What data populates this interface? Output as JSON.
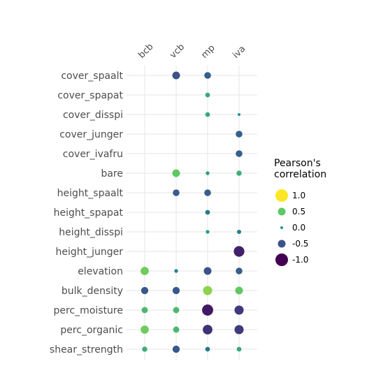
{
  "chart_data": {
    "type": "scatter",
    "subtype": "correlation-dot-matrix",
    "x_categories": [
      "bcb",
      "vcb",
      "mp",
      "iva"
    ],
    "y_categories": [
      "cover_spaalt",
      "cover_spapat",
      "cover_disspi",
      "cover_junger",
      "cover_ivafru",
      "bare",
      "height_spaalt",
      "height_spapat",
      "height_disspi",
      "height_junger",
      "elevation",
      "bulk_density",
      "perc_moisture",
      "perc_organic",
      "shear_strength"
    ],
    "points": [
      {
        "x": "vcb",
        "y": "cover_spaalt",
        "r": -0.5
      },
      {
        "x": "mp",
        "y": "cover_spaalt",
        "r": -0.4
      },
      {
        "x": "mp",
        "y": "cover_spapat",
        "r": 0.2
      },
      {
        "x": "mp",
        "y": "cover_disspi",
        "r": 0.2
      },
      {
        "x": "iva",
        "y": "cover_disspi",
        "r": 0.0
      },
      {
        "x": "iva",
        "y": "cover_junger",
        "r": -0.4
      },
      {
        "x": "iva",
        "y": "cover_ivafru",
        "r": -0.4
      },
      {
        "x": "vcb",
        "y": "bare",
        "r": 0.5
      },
      {
        "x": "mp",
        "y": "bare",
        "r": 0.1
      },
      {
        "x": "iva",
        "y": "bare",
        "r": 0.25
      },
      {
        "x": "vcb",
        "y": "height_spaalt",
        "r": -0.4
      },
      {
        "x": "mp",
        "y": "height_spaalt",
        "r": -0.4
      },
      {
        "x": "mp",
        "y": "height_spapat",
        "r": -0.2
      },
      {
        "x": "mp",
        "y": "height_disspi",
        "r": 0.1
      },
      {
        "x": "iva",
        "y": "height_disspi",
        "r": -0.15
      },
      {
        "x": "iva",
        "y": "height_junger",
        "r": -0.8
      },
      {
        "x": "bcb",
        "y": "elevation",
        "r": 0.55
      },
      {
        "x": "vcb",
        "y": "elevation",
        "r": -0.1
      },
      {
        "x": "mp",
        "y": "elevation",
        "r": -0.5
      },
      {
        "x": "iva",
        "y": "elevation",
        "r": -0.4
      },
      {
        "x": "bcb",
        "y": "bulk_density",
        "r": -0.45
      },
      {
        "x": "vcb",
        "y": "bulk_density",
        "r": -0.45
      },
      {
        "x": "mp",
        "y": "bulk_density",
        "r": 0.65
      },
      {
        "x": "iva",
        "y": "bulk_density",
        "r": 0.5
      },
      {
        "x": "bcb",
        "y": "perc_moisture",
        "r": 0.35
      },
      {
        "x": "vcb",
        "y": "perc_moisture",
        "r": 0.35
      },
      {
        "x": "mp",
        "y": "perc_moisture",
        "r": -0.85
      },
      {
        "x": "iva",
        "y": "perc_moisture",
        "r": -0.65
      },
      {
        "x": "bcb",
        "y": "perc_organic",
        "r": 0.55
      },
      {
        "x": "vcb",
        "y": "perc_organic",
        "r": 0.35
      },
      {
        "x": "mp",
        "y": "perc_organic",
        "r": -0.7
      },
      {
        "x": "iva",
        "y": "perc_organic",
        "r": -0.65
      },
      {
        "x": "bcb",
        "y": "shear_strength",
        "r": 0.25
      },
      {
        "x": "vcb",
        "y": "shear_strength",
        "r": -0.45
      },
      {
        "x": "mp",
        "y": "shear_strength",
        "r": -0.2
      },
      {
        "x": "iva",
        "y": "shear_strength",
        "r": 0.2
      }
    ],
    "size_encoding": "absolute value of correlation",
    "color_scale": "viridis",
    "color_range": [
      -1,
      1
    ],
    "legend": {
      "title": "Pearson's\ncorrelation",
      "placement": "right",
      "entries": [
        {
          "label": "1.0",
          "value": 1.0
        },
        {
          "label": "0.5",
          "value": 0.5
        },
        {
          "label": "0.0",
          "value": 0.0
        },
        {
          "label": "-0.5",
          "value": -0.5
        },
        {
          "label": "-1.0",
          "value": -1.0
        }
      ]
    },
    "grid": true,
    "x_axis_position": "top"
  }
}
